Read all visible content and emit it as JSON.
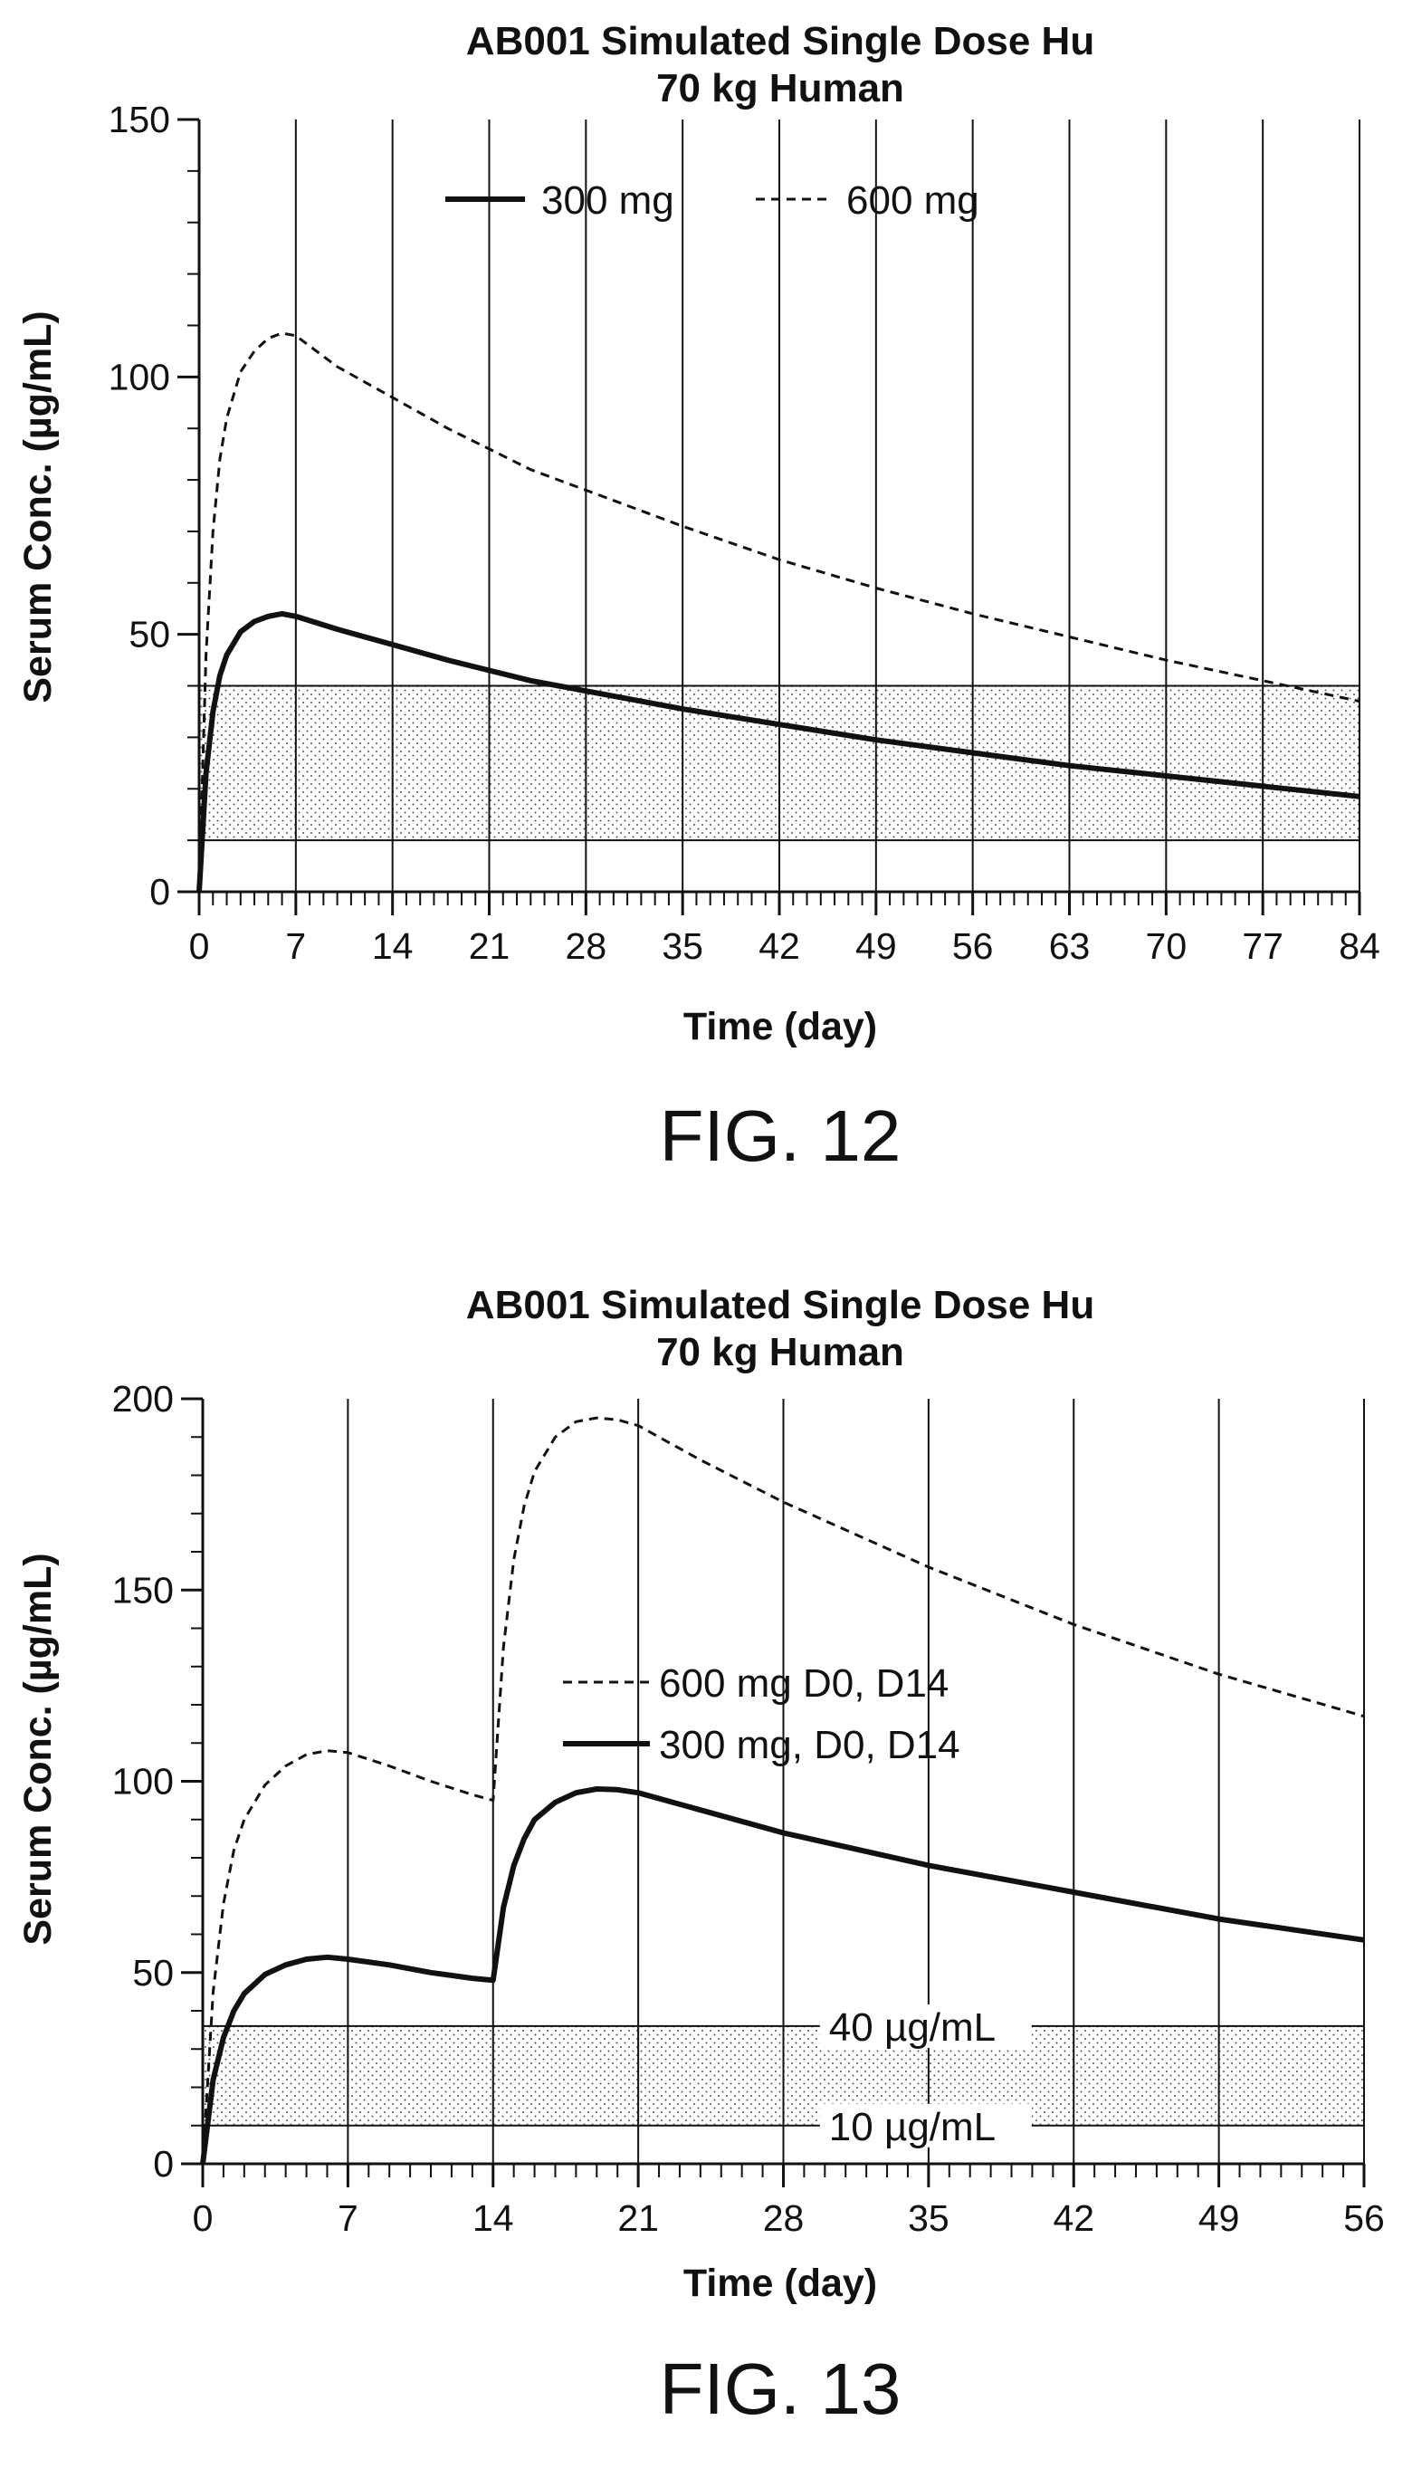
{
  "chart_data": [
    {
      "type": "line",
      "title": [
        "AB001 Simulated Single Dose Hu",
        "70 kg Human"
      ],
      "xlabel": "Time (day)",
      "ylabel": "Serum Conc. (µg/mL)",
      "xlim": [
        0,
        84
      ],
      "ylim": [
        0,
        150
      ],
      "xticks": [
        0,
        7,
        14,
        21,
        28,
        35,
        42,
        49,
        56,
        63,
        70,
        77,
        84
      ],
      "yticks": [
        0,
        50,
        100,
        150
      ],
      "vertical_gridlines": true,
      "target_band": [
        10,
        40
      ],
      "band_labels": [],
      "legend": "top-center",
      "caption": "FIG. 12",
      "series": [
        {
          "name": "300 mg",
          "style": "solid",
          "x": [
            0,
            0.5,
            1,
            1.5,
            2,
            3,
            4,
            5,
            6,
            7,
            10,
            14,
            18,
            21,
            24,
            28,
            35,
            42,
            49,
            56,
            63,
            70,
            77,
            84
          ],
          "y": [
            0,
            23,
            35,
            42,
            46,
            50.5,
            52.5,
            53.5,
            54,
            53.5,
            51,
            48,
            45,
            43,
            41,
            39,
            35.5,
            32.5,
            29.5,
            27,
            24.5,
            22.5,
            20.5,
            18.5
          ]
        },
        {
          "name": "600 mg",
          "style": "dashed",
          "x": [
            0,
            0.5,
            1,
            1.5,
            2,
            3,
            4,
            5,
            6,
            7,
            10,
            14,
            18,
            21,
            24,
            28,
            35,
            42,
            49,
            56,
            63,
            70,
            77,
            84
          ],
          "y": [
            0,
            46,
            70,
            84,
            92,
            101,
            105,
            107.5,
            108.5,
            108,
            102,
            96,
            90,
            86,
            82,
            78,
            71,
            64.5,
            59,
            54,
            49.5,
            45,
            41,
            37
          ]
        }
      ]
    },
    {
      "type": "line",
      "title": [
        "AB001 Simulated Single Dose Hu",
        "70 kg Human"
      ],
      "xlabel": "Time (day)",
      "ylabel": "Serum Conc. (µg/mL)",
      "xlim": [
        0,
        56
      ],
      "ylim": [
        0,
        200
      ],
      "xticks": [
        0,
        7,
        14,
        21,
        28,
        35,
        42,
        49,
        56
      ],
      "yticks": [
        0,
        50,
        100,
        150,
        200
      ],
      "vertical_gridlines": true,
      "target_band": [
        10,
        36
      ],
      "band_labels": [
        {
          "text": "40 µg/mL",
          "y": 36
        },
        {
          "text": "10 µg/mL",
          "y": 10
        }
      ],
      "legend": "center",
      "caption": "FIG. 13",
      "series": [
        {
          "name": "600 mg D0, D14",
          "style": "dashed",
          "x": [
            0,
            0.5,
            1,
            1.5,
            2,
            3,
            4,
            5,
            6,
            7,
            9,
            11,
            13,
            14,
            14.5,
            15,
            15.5,
            16,
            17,
            18,
            19,
            20,
            21,
            24,
            28,
            35,
            42,
            49,
            56
          ],
          "y": [
            0,
            45,
            68,
            82,
            90,
            99,
            104,
            107,
            108,
            107.5,
            104,
            100,
            96.5,
            95,
            135,
            158,
            172,
            181,
            190,
            194,
            195,
            194.5,
            193,
            184,
            173,
            156,
            141,
            128,
            117
          ]
        },
        {
          "name": "300 mg, D0, D14",
          "style": "solid",
          "x": [
            0,
            0.5,
            1,
            1.5,
            2,
            3,
            4,
            5,
            6,
            7,
            9,
            11,
            13,
            14,
            14.5,
            15,
            15.5,
            16,
            17,
            18,
            19,
            20,
            21,
            24,
            28,
            35,
            42,
            49,
            56
          ],
          "y": [
            0,
            22,
            33,
            40,
            44.5,
            49.5,
            52,
            53.5,
            54,
            53.5,
            52,
            50,
            48.5,
            48,
            67,
            78,
            85,
            90,
            94.5,
            97,
            98,
            97.8,
            97,
            92.5,
            86.5,
            78,
            71,
            64,
            58.5
          ]
        }
      ]
    }
  ]
}
